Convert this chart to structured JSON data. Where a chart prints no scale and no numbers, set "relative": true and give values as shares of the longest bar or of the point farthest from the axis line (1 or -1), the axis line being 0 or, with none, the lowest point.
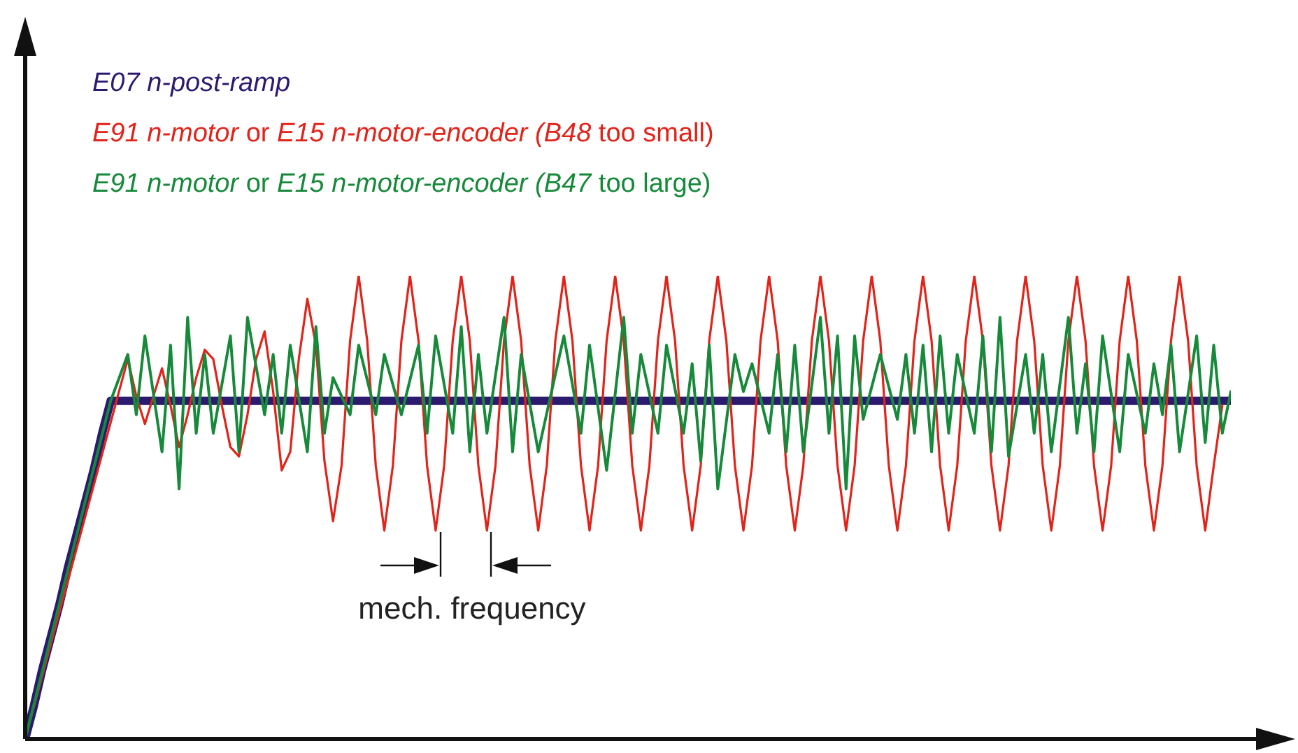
{
  "chart_data": {
    "type": "line",
    "relative": true,
    "marker": "none",
    "annotations": [
      "mech. frequency"
    ],
    "categories": [
      null,
      null,
      null,
      null,
      null,
      null,
      null,
      null,
      null,
      null,
      null,
      null,
      null,
      null,
      null,
      null,
      null,
      null,
      null,
      null,
      null,
      null,
      null,
      null,
      null,
      null,
      null,
      null,
      null,
      null,
      null,
      null,
      null,
      null,
      null,
      null,
      null,
      null,
      null,
      null,
      null,
      null,
      null,
      null,
      null,
      null,
      null,
      null,
      null,
      null,
      null,
      null,
      null,
      null,
      null,
      null,
      null,
      null,
      null,
      null,
      null,
      null,
      null,
      null,
      null,
      null,
      null,
      null,
      null,
      null,
      null,
      null,
      null,
      null,
      null,
      null,
      null,
      null,
      null,
      null,
      null,
      null,
      null,
      null,
      null,
      null,
      null,
      null,
      null,
      null,
      null,
      null,
      null,
      null,
      null,
      null,
      null,
      null,
      null,
      null,
      null,
      null,
      null,
      null,
      null,
      null,
      null,
      null,
      null,
      null,
      null,
      null,
      null,
      null,
      null,
      null,
      null,
      null,
      null,
      null,
      null,
      null,
      null,
      null,
      null,
      null,
      null,
      null,
      null,
      null,
      null,
      null,
      null,
      null,
      null,
      null,
      null,
      null,
      null,
      null,
      null,
      null
    ],
    "series": [
      {
        "name": "E07 n-post-ramp",
        "color": "#2b1a6e",
        "values": [
          0,
          0.07,
          0.15,
          0.22,
          0.29,
          0.37,
          0.44,
          0.51,
          0.58,
          0.66,
          0.73,
          0.73,
          0.73,
          0.73,
          0.73,
          0.73,
          0.73,
          0.73,
          0.73,
          0.73,
          0.73,
          0.73,
          0.73,
          0.73,
          0.73,
          0.73,
          0.73,
          0.73,
          0.73,
          0.73,
          0.73,
          0.73,
          0.73,
          0.73,
          0.73,
          0.73,
          0.73,
          0.73,
          0.73,
          0.73,
          0.73,
          0.73,
          0.73,
          0.73,
          0.73,
          0.73,
          0.73,
          0.73,
          0.73,
          0.73,
          0.73,
          0.73,
          0.73,
          0.73,
          0.73,
          0.73,
          0.73,
          0.73,
          0.73,
          0.73,
          0.73,
          0.73,
          0.73,
          0.73,
          0.73,
          0.73,
          0.73,
          0.73,
          0.73,
          0.73,
          0.73,
          0.73,
          0.73,
          0.73,
          0.73,
          0.73,
          0.73,
          0.73,
          0.73,
          0.73,
          0.73,
          0.73,
          0.73,
          0.73,
          0.73,
          0.73,
          0.73,
          0.73,
          0.73,
          0.73,
          0.73,
          0.73,
          0.73,
          0.73,
          0.73,
          0.73,
          0.73,
          0.73,
          0.73,
          0.73,
          0.73,
          0.73,
          0.73,
          0.73,
          0.73,
          0.73,
          0.73,
          0.73,
          0.73,
          0.73,
          0.73,
          0.73,
          0.73,
          0.73,
          0.73,
          0.73,
          0.73,
          0.73,
          0.73,
          0.73,
          0.73,
          0.73,
          0.73,
          0.73,
          0.73,
          0.73,
          0.73,
          0.73,
          0.73,
          0.73,
          0.73,
          0.73,
          0.73,
          0.73,
          0.73,
          0.73,
          0.73,
          0.73,
          0.73,
          0.73,
          0.73,
          0.73
        ]
      },
      {
        "name": "E91 n-motor or E15 n-motor-encoder (B48 too small)",
        "color": "#e2231a",
        "values": [
          0,
          null,
          null,
          null,
          null,
          null,
          null,
          null,
          null,
          null,
          null,
          null,
          0.82,
          0.74,
          0.68,
          0.74,
          0.8,
          0.72,
          0.63,
          0.7,
          0.78,
          0.84,
          0.82,
          0.72,
          0.63,
          0.61,
          0.7,
          0.82,
          0.88,
          0.75,
          0.58,
          0.62,
          0.82,
          0.95,
          0.85,
          0.6,
          0.47,
          0.59,
          0.86,
          1,
          0.86,
          0.59,
          0.45,
          0.59,
          0.86,
          1,
          0.86,
          0.59,
          0.45,
          0.59,
          0.86,
          1,
          0.86,
          0.59,
          0.45,
          0.59,
          0.86,
          1,
          0.86,
          0.59,
          0.45,
          0.59,
          0.86,
          1,
          0.86,
          0.59,
          0.45,
          0.59,
          0.86,
          1,
          0.86,
          0.59,
          0.45,
          0.59,
          0.86,
          1,
          0.86,
          0.59,
          0.45,
          0.59,
          0.86,
          1,
          0.86,
          0.59,
          0.45,
          0.59,
          0.86,
          1,
          0.86,
          0.59,
          0.45,
          0.59,
          0.86,
          1,
          0.86,
          0.59,
          0.45,
          0.59,
          0.86,
          1,
          0.86,
          0.59,
          0.45,
          0.59,
          0.86,
          1,
          0.86,
          0.59,
          0.45,
          0.59,
          0.86,
          1,
          0.86,
          0.59,
          0.45,
          0.59,
          0.86,
          1,
          0.86,
          0.59,
          0.45,
          0.59,
          0.86,
          1,
          0.86,
          0.59,
          0.45,
          0.59,
          0.86,
          1,
          0.86,
          0.59,
          0.45,
          0.59,
          0.86,
          1,
          0.86,
          0.59,
          0.45,
          0.59,
          0.72,
          null
        ]
      },
      {
        "name": "E91 n-motor or E15 n-motor-encoder (B47 too large)",
        "color": "#16893a",
        "values": [
          0,
          null,
          null,
          null,
          null,
          null,
          null,
          null,
          null,
          null,
          0.73,
          null,
          0.83,
          0.7,
          0.87,
          null,
          0.62,
          0.85,
          0.54,
          0.91,
          0.66,
          0.83,
          0.66,
          null,
          0.87,
          0.62,
          0.91,
          null,
          0.7,
          0.83,
          0.66,
          0.85,
          null,
          0.62,
          0.89,
          0.66,
          0.78,
          null,
          0.7,
          0.85,
          null,
          0.7,
          0.83,
          null,
          0.7,
          null,
          0.85,
          0.66,
          0.87,
          null,
          0.66,
          0.89,
          0.62,
          0.83,
          0.66,
          null,
          0.91,
          0.62,
          0.83,
          null,
          0.62,
          null,
          null,
          0.87,
          null,
          0.66,
          0.85,
          null,
          0.58,
          null,
          0.91,
          0.66,
          0.83,
          null,
          0.66,
          0.85,
          null,
          0.66,
          0.81,
          0.6,
          0.85,
          0.54,
          null,
          0.83,
          0.75,
          0.81,
          null,
          0.66,
          0.83,
          0.62,
          0.85,
          0.62,
          null,
          0.91,
          0.66,
          0.87,
          0.54,
          0.87,
          0.69,
          null,
          0.83,
          null,
          0.69,
          0.83,
          0.66,
          0.85,
          0.62,
          0.87,
          0.66,
          0.83,
          null,
          0.66,
          0.87,
          0.62,
          0.91,
          0.61,
          null,
          0.83,
          0.66,
          0.83,
          0.62,
          null,
          0.91,
          0.66,
          0.81,
          0.62,
          0.87,
          null,
          0.62,
          0.83,
          null,
          0.66,
          0.81,
          0.7,
          0.85,
          0.62,
          null,
          0.87,
          0.64,
          0.85,
          0.66,
          0.75
        ]
      }
    ]
  }
}
